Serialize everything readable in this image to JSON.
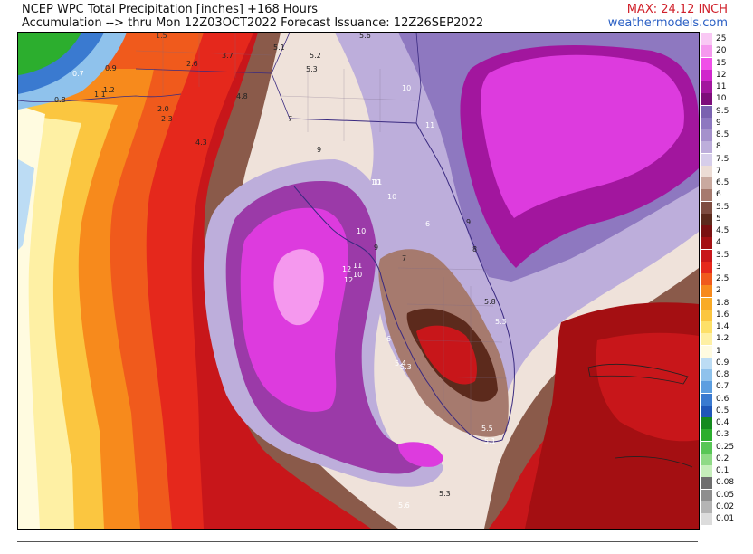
{
  "header": {
    "title_line1": "NCEP WPC Total Precipitation [inches] +168 Hours",
    "title_line2": "Accumulation --> thru Mon 12Z03OCT2022   Forecast Issuance: 12Z26SEP2022",
    "max_label": "MAX: 24.12 INCH",
    "site": "weathermodels.com"
  },
  "legend": {
    "entries": [
      {
        "label": "25",
        "color": "#f9c8f4"
      },
      {
        "label": "20",
        "color": "#f598ee"
      },
      {
        "label": "15",
        "color": "#f050e8"
      },
      {
        "label": "12",
        "color": "#d026cc"
      },
      {
        "label": "11",
        "color": "#a2169e"
      },
      {
        "label": "10",
        "color": "#7d0d7a"
      },
      {
        "label": "9.5",
        "color": "#7a62b0"
      },
      {
        "label": "9",
        "color": "#8e78c0"
      },
      {
        "label": "8.5",
        "color": "#a591cc"
      },
      {
        "label": "8",
        "color": "#bdaedb"
      },
      {
        "label": "7.5",
        "color": "#d6cdea"
      },
      {
        "label": "7",
        "color": "#ecdcd5"
      },
      {
        "label": "6.5",
        "color": "#c9a99f"
      },
      {
        "label": "6",
        "color": "#a67a6e"
      },
      {
        "label": "5.5",
        "color": "#7e4c40"
      },
      {
        "label": "5",
        "color": "#5c2a1c"
      },
      {
        "label": "4.5",
        "color": "#7a1010"
      },
      {
        "label": "4",
        "color": "#a40f12"
      },
      {
        "label": "3.5",
        "color": "#c8161a"
      },
      {
        "label": "3",
        "color": "#e5281c"
      },
      {
        "label": "2.5",
        "color": "#f05a1c"
      },
      {
        "label": "2",
        "color": "#f78a1c"
      },
      {
        "label": "1.8",
        "color": "#f9ab26"
      },
      {
        "label": "1.6",
        "color": "#fbc640"
      },
      {
        "label": "1.4",
        "color": "#fde068"
      },
      {
        "label": "1.2",
        "color": "#fef0a4"
      },
      {
        "label": "1",
        "color": "#fffbe0"
      },
      {
        "label": "0.9",
        "color": "#bcdcf4"
      },
      {
        "label": "0.8",
        "color": "#8fc2ec"
      },
      {
        "label": "0.7",
        "color": "#5c9ee0"
      },
      {
        "label": "0.6",
        "color": "#3a7ad0"
      },
      {
        "label": "0.5",
        "color": "#1f56b8"
      },
      {
        "label": "0.4",
        "color": "#148a1e"
      },
      {
        "label": "0.3",
        "color": "#2cae2e"
      },
      {
        "label": "0.25",
        "color": "#58c656"
      },
      {
        "label": "0.2",
        "color": "#8fda86"
      },
      {
        "label": "0.1",
        "color": "#c6eebb"
      },
      {
        "label": "0.08",
        "color": "#6e6e6e"
      },
      {
        "label": "0.05",
        "color": "#8e8e8e"
      },
      {
        "label": "0.02",
        "color": "#b4b4b4"
      },
      {
        "label": "0.01",
        "color": "#dcdcdc"
      }
    ]
  },
  "map": {
    "description_colors": {
      "gulf_magenta": "#e040e0",
      "atlantic_magenta": "#dd3bde",
      "purple": "#9b3aa8",
      "lavender": "#b9a8d8",
      "cream": "#efe2da",
      "brown": "#8a5a4a",
      "dark_red": "#a8141a",
      "red": "#d8221c",
      "orange": "#f37a1c",
      "yellow": "#fde27a",
      "light_yellow": "#fff4c0",
      "light_blue": "#bfe0f5",
      "green": "#2eaa30"
    },
    "value_labels": [
      {
        "text": "1.5"
      },
      {
        "text": "3.7"
      },
      {
        "text": "5.1"
      },
      {
        "text": "5.2"
      },
      {
        "text": "5.3"
      },
      {
        "text": "5.6"
      },
      {
        "text": "0.7"
      },
      {
        "text": "0.9"
      },
      {
        "text": "2.6"
      },
      {
        "text": "4.8"
      },
      {
        "text": "1.2"
      },
      {
        "text": "1.1"
      },
      {
        "text": "0.8"
      },
      {
        "text": "2.0"
      },
      {
        "text": "2.3"
      },
      {
        "text": "4.3"
      },
      {
        "text": "7"
      },
      {
        "text": "9"
      },
      {
        "text": "10"
      },
      {
        "text": "11"
      },
      {
        "text": "12"
      },
      {
        "text": "6"
      },
      {
        "text": "8"
      },
      {
        "text": "5.8"
      },
      {
        "text": "5.4"
      },
      {
        "text": "5.5"
      },
      {
        "text": "5.6"
      }
    ]
  }
}
